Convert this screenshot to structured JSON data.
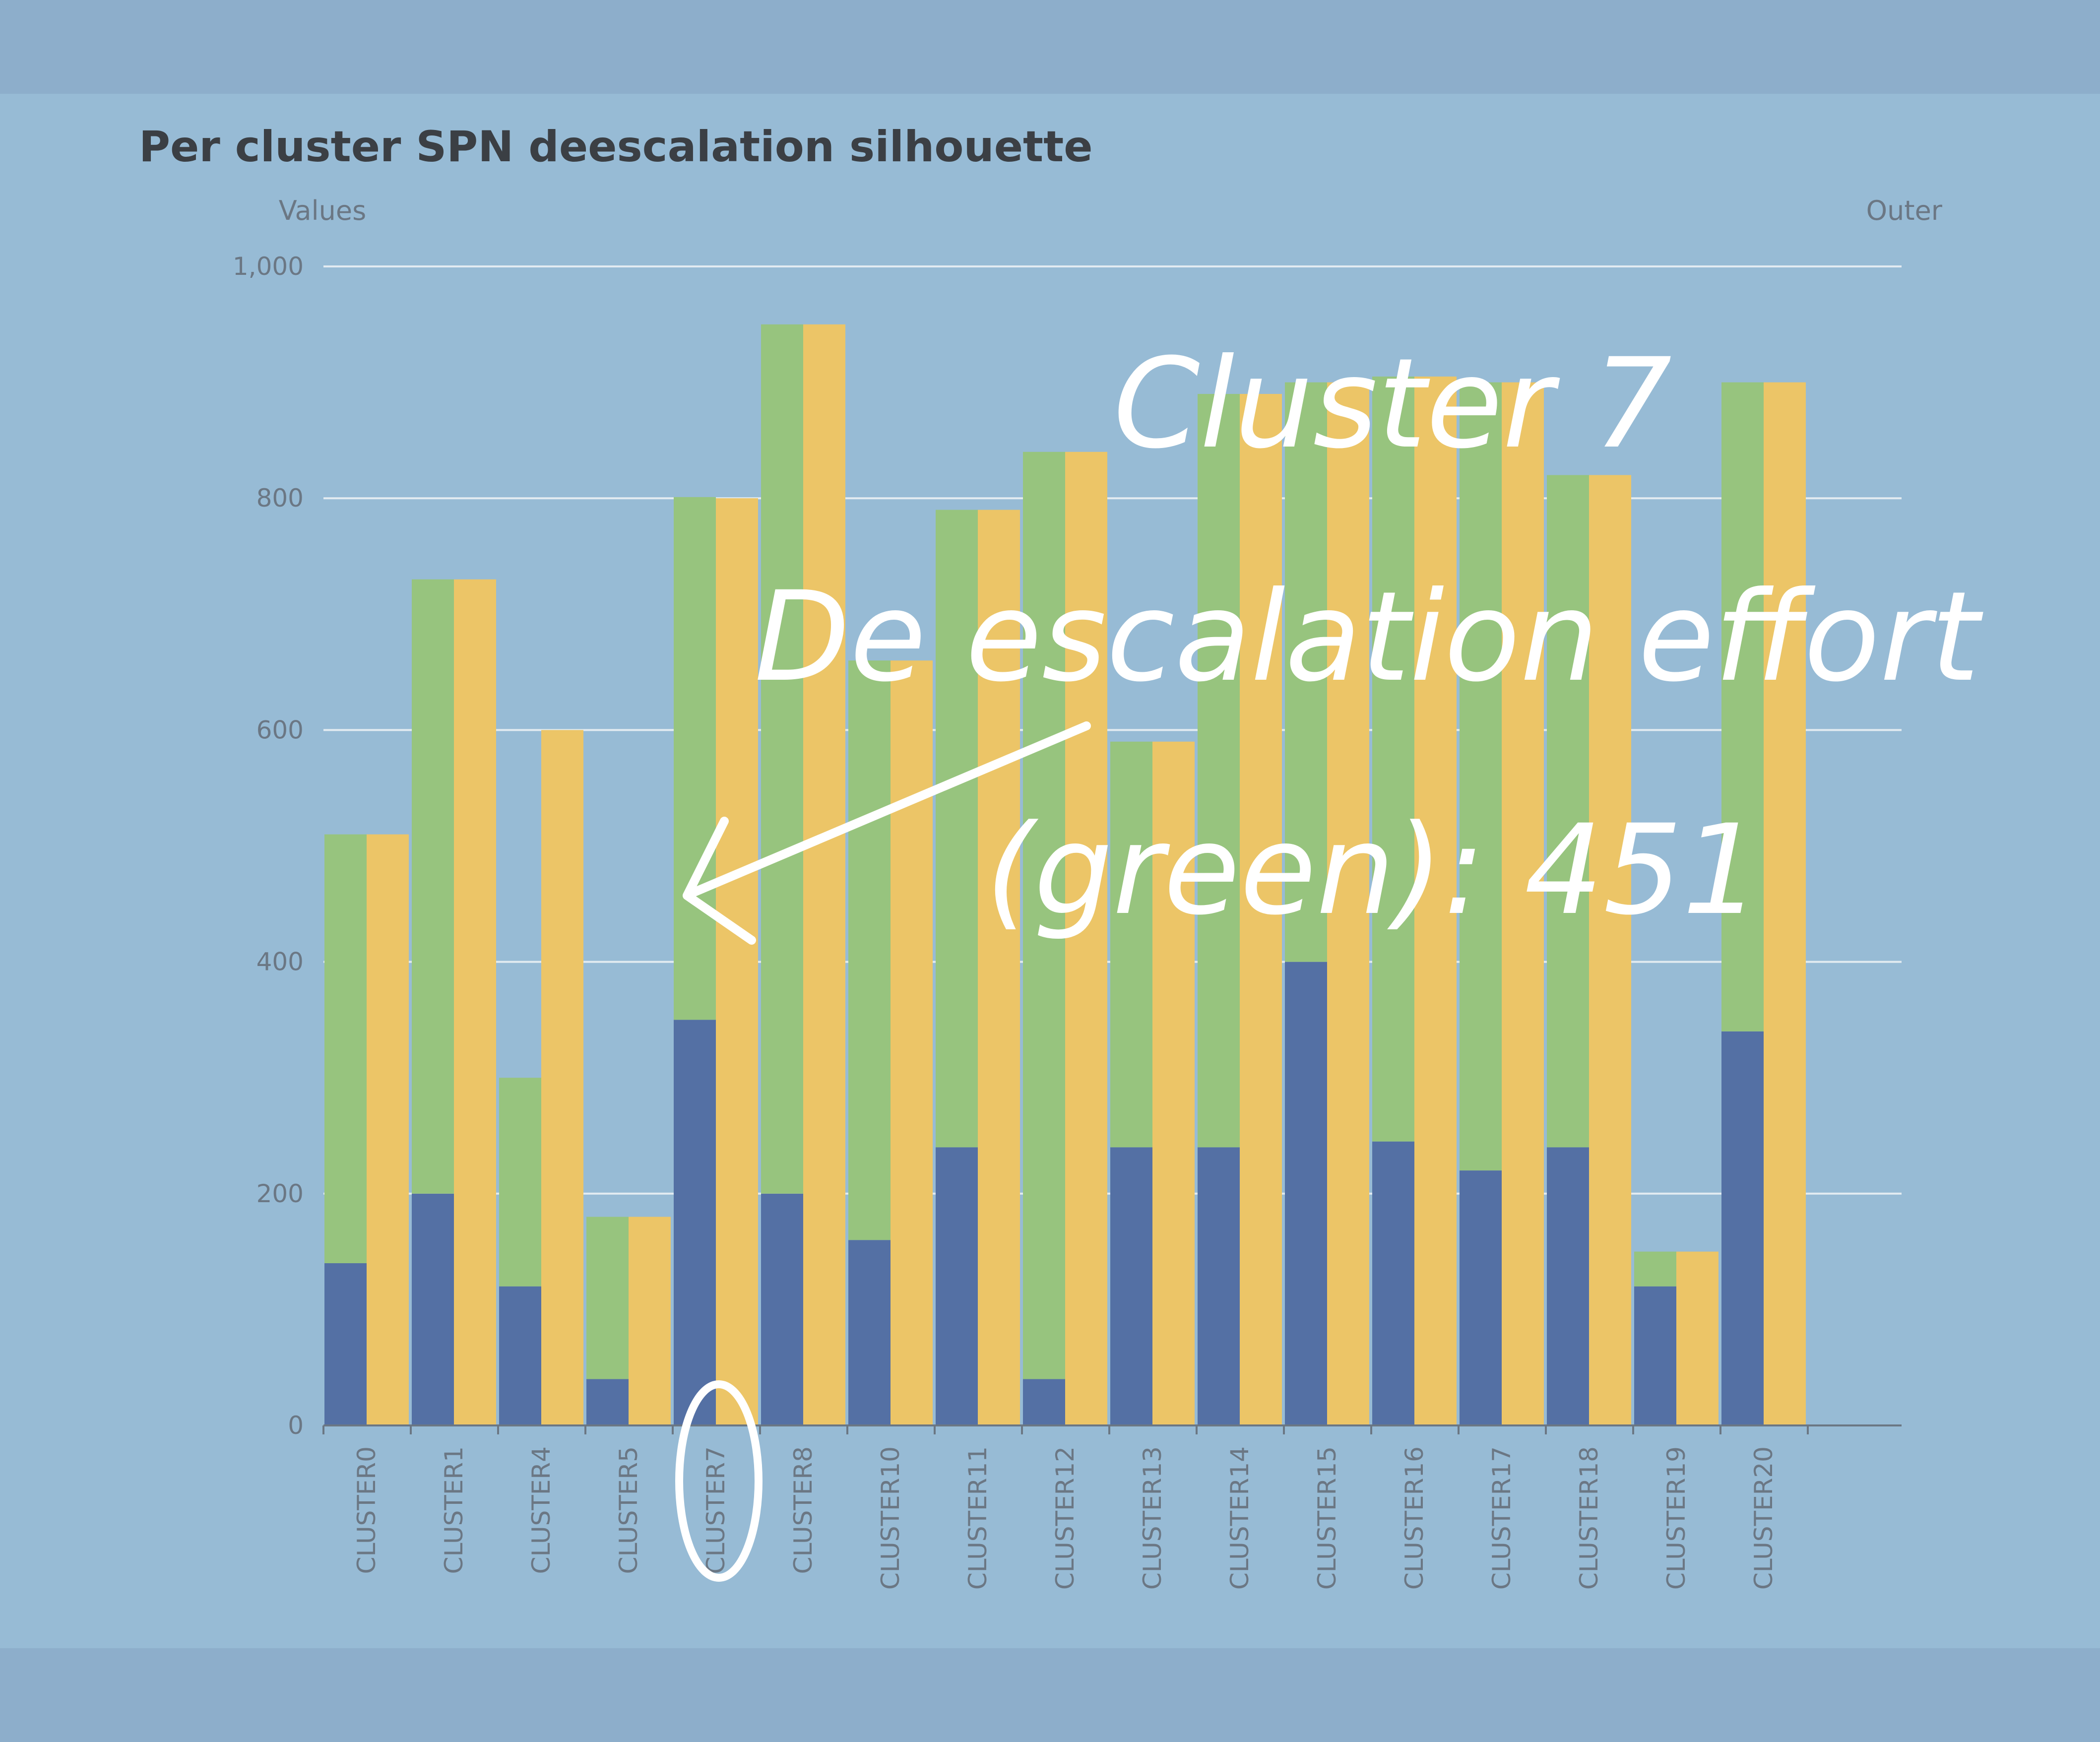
{
  "chart_data": {
    "type": "bar",
    "title": "Per cluster SPN deescalation silhouette",
    "ylabel": "Values",
    "y2label": "Outer",
    "ylim": [
      0,
      1000
    ],
    "yticks": [
      "0",
      "200",
      "400",
      "600",
      "800",
      "1,000"
    ],
    "categories": [
      "CLUSTER0",
      "CLUSTER1",
      "CLUSTER4",
      "CLUSTER5",
      "CLUSTER7",
      "CLUSTER8",
      "CLUSTER10",
      "CLUSTER11",
      "CLUSTER12",
      "CLUSTER13",
      "CLUSTER14",
      "CLUSTER15",
      "CLUSTER16",
      "CLUSTER17",
      "CLUSTER18",
      "CLUSTER19",
      "CLUSTER20"
    ],
    "series": [
      {
        "stack": "a",
        "color": "#5470a4",
        "values": [
          140,
          200,
          120,
          40,
          350,
          200,
          160,
          240,
          40,
          240,
          240,
          400,
          245,
          220,
          240,
          120,
          340
        ]
      },
      {
        "stack": "a",
        "color": "#97c47e",
        "values": [
          370,
          530,
          180,
          140,
          451,
          750,
          500,
          550,
          800,
          350,
          650,
          500,
          660,
          680,
          580,
          30,
          560
        ]
      },
      {
        "stack": "b",
        "color": "#ecc567",
        "values": [
          510,
          730,
          600,
          180,
          800,
          950,
          660,
          790,
          840,
          590,
          890,
          900,
          905,
          900,
          820,
          150,
          900
        ]
      }
    ],
    "grid": true,
    "annotation": {
      "lines": [
        "Cluster 7",
        "De escalation effort",
        "(green): 451"
      ],
      "color": "#ffffff",
      "target_category": "CLUSTER7"
    }
  }
}
